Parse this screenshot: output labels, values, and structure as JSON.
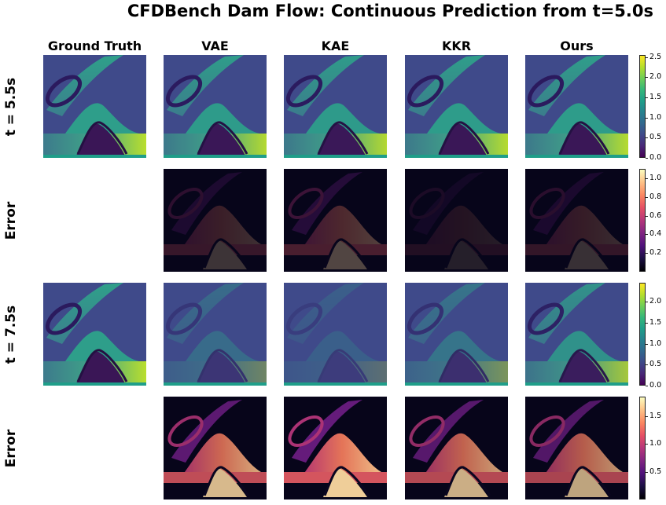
{
  "chart_data": {
    "type": "heatmap",
    "title": "CFDBench Dam Flow: Continuous Prediction from t=5.0s",
    "columns": [
      "Ground Truth",
      "VAE",
      "KAE",
      "KKR",
      "Ours"
    ],
    "rows": [
      {
        "label": "t = 5.5s",
        "kind": "field",
        "colormap": "viridis",
        "colorbar": {
          "min": 0.0,
          "max": 2.55,
          "ticks": [
            "0.0",
            "0.5",
            "1.0",
            "1.5",
            "2.0",
            "2.5"
          ]
        },
        "panels": [
          {
            "model": "Ground Truth",
            "shown": true,
            "fidelity": 1.0
          },
          {
            "model": "VAE",
            "shown": true,
            "fidelity": 0.97
          },
          {
            "model": "KAE",
            "shown": true,
            "fidelity": 0.96
          },
          {
            "model": "KKR",
            "shown": true,
            "fidelity": 0.98
          },
          {
            "model": "Ours",
            "shown": true,
            "fidelity": 0.98
          }
        ]
      },
      {
        "label": "Error",
        "kind": "error",
        "colormap": "magma",
        "colorbar": {
          "min": 0.0,
          "max": 1.1,
          "ticks": [
            "0.2",
            "0.4",
            "0.6",
            "0.8",
            "1.0"
          ]
        },
        "panels": [
          {
            "model": "Ground Truth",
            "shown": false,
            "level": 0
          },
          {
            "model": "VAE",
            "shown": true,
            "level": 0.22
          },
          {
            "model": "KAE",
            "shown": true,
            "level": 0.3
          },
          {
            "model": "KKR",
            "shown": true,
            "level": 0.12
          },
          {
            "model": "Ours",
            "shown": true,
            "level": 0.2
          }
        ]
      },
      {
        "label": "t = 7.5s",
        "kind": "field",
        "colormap": "viridis",
        "colorbar": {
          "min": 0.0,
          "max": 2.45,
          "ticks": [
            "0.0",
            "0.5",
            "1.0",
            "1.5",
            "2.0"
          ]
        },
        "panels": [
          {
            "model": "Ground Truth",
            "shown": true,
            "fidelity": 1.0
          },
          {
            "model": "VAE",
            "shown": true,
            "fidelity": 0.4
          },
          {
            "model": "KAE",
            "shown": true,
            "fidelity": 0.25
          },
          {
            "model": "KKR",
            "shown": true,
            "fidelity": 0.5
          },
          {
            "model": "Ours",
            "shown": true,
            "fidelity": 0.85
          }
        ]
      },
      {
        "label": "Error",
        "kind": "error",
        "colormap": "magma",
        "colorbar": {
          "min": 0.0,
          "max": 1.85,
          "ticks": [
            "0.5",
            "1.0",
            "1.5"
          ]
        },
        "panels": [
          {
            "model": "Ground Truth",
            "shown": false,
            "level": 0
          },
          {
            "model": "VAE",
            "shown": true,
            "level": 0.85
          },
          {
            "model": "KAE",
            "shown": true,
            "level": 0.95
          },
          {
            "model": "KKR",
            "shown": true,
            "level": 0.8
          },
          {
            "model": "Ours",
            "shown": true,
            "level": 0.75
          }
        ]
      }
    ]
  }
}
